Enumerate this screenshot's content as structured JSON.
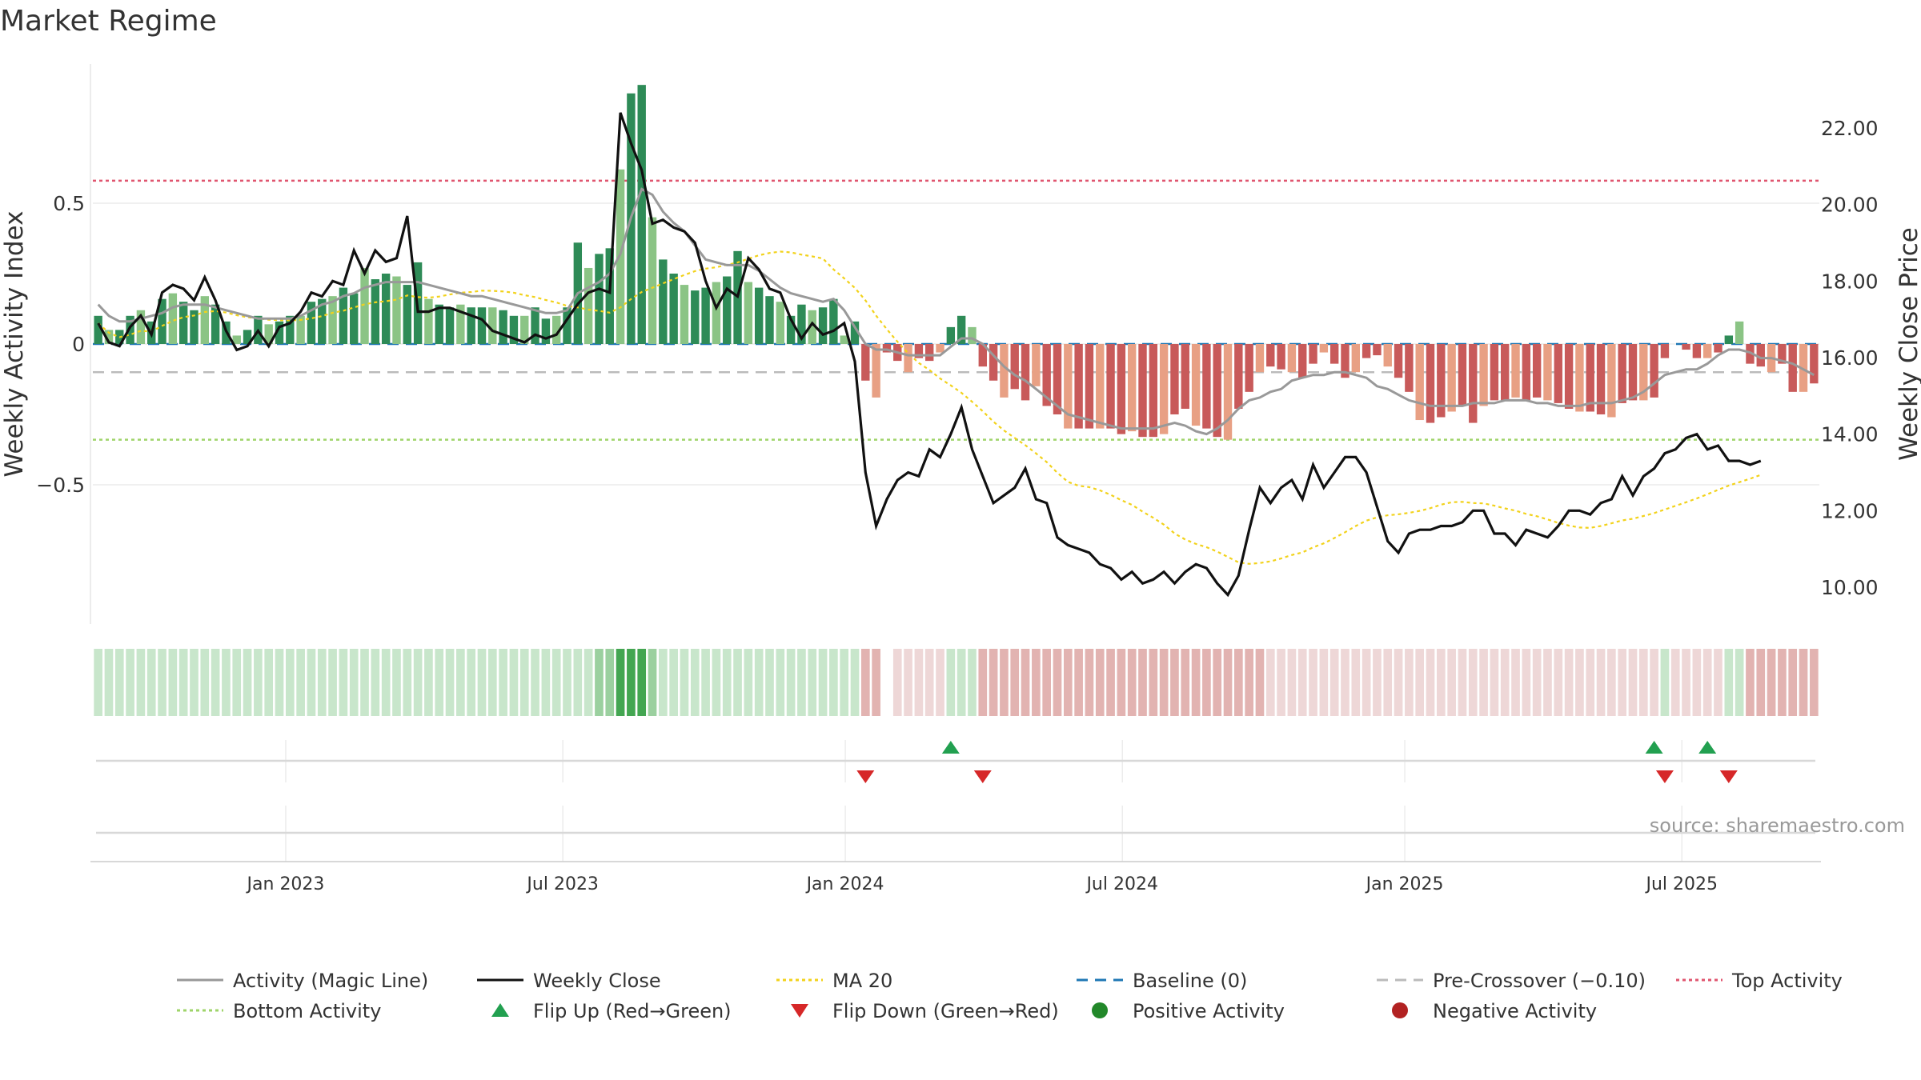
{
  "chart_data": {
    "type": "bar",
    "title": "Market Regime",
    "ylabel": "Weekly Activity Index",
    "y2label": "Weekly Close Price",
    "ylim": [
      -0.98,
      0.99
    ],
    "y2lim": [
      9.0,
      23.0
    ],
    "y_ticks": [
      {
        "v": 0.5,
        "label": "0.5"
      },
      {
        "v": 0,
        "label": "0"
      },
      {
        "v": -0.5,
        "label": "−0.5"
      }
    ],
    "y2_ticks": [
      {
        "v": 22,
        "label": "22.00"
      },
      {
        "v": 20,
        "label": "20.00"
      },
      {
        "v": 18,
        "label": "18.00"
      },
      {
        "v": 16,
        "label": "16.00"
      },
      {
        "v": 14,
        "label": "14.00"
      },
      {
        "v": 12,
        "label": "12.00"
      },
      {
        "v": 10,
        "label": "10.00"
      }
    ],
    "x_ticks": [
      {
        "i": 17.6,
        "label": "Jan 2023"
      },
      {
        "i": 43.6,
        "label": "Jul 2023"
      },
      {
        "i": 70.1,
        "label": "Jan 2024"
      },
      {
        "i": 96.1,
        "label": "Jul 2024"
      },
      {
        "i": 122.6,
        "label": "Jan 2025"
      },
      {
        "i": 148.6,
        "label": "Jul 2025"
      }
    ],
    "reference_lines": {
      "top_activity": 0.58,
      "bottom_activity": -0.34,
      "pre_crossover": -0.1,
      "baseline": 0
    },
    "activity": [
      0.1,
      0.05,
      0.05,
      0.1,
      0.12,
      0.08,
      0.16,
      0.18,
      0.15,
      0.12,
      0.17,
      0.14,
      0.08,
      0.03,
      0.05,
      0.1,
      0.07,
      0.08,
      0.1,
      0.1,
      0.15,
      0.16,
      0.17,
      0.2,
      0.18,
      0.27,
      0.23,
      0.25,
      0.24,
      0.21,
      0.29,
      0.16,
      0.14,
      0.13,
      0.14,
      0.13,
      0.13,
      0.13,
      0.12,
      0.1,
      0.1,
      0.13,
      0.09,
      0.1,
      0.13,
      0.36,
      0.27,
      0.32,
      0.34,
      0.62,
      0.89,
      0.92,
      0.45,
      0.3,
      0.25,
      0.21,
      0.19,
      0.2,
      0.22,
      0.24,
      0.33,
      0.22,
      0.2,
      0.17,
      0.15,
      0.1,
      0.14,
      0.12,
      0.13,
      0.16,
      0.03,
      0.08,
      -0.13,
      -0.19,
      -0.03,
      -0.06,
      -0.1,
      -0.05,
      -0.06,
      -0.03,
      0.06,
      0.1,
      0.06,
      -0.08,
      -0.13,
      -0.19,
      -0.16,
      -0.2,
      -0.15,
      -0.22,
      -0.25,
      -0.3,
      -0.3,
      -0.3,
      -0.3,
      -0.3,
      -0.32,
      -0.31,
      -0.33,
      -0.33,
      -0.32,
      -0.25,
      -0.23,
      -0.29,
      -0.3,
      -0.33,
      -0.34,
      -0.23,
      -0.17,
      -0.1,
      -0.08,
      -0.09,
      -0.1,
      -0.12,
      -0.07,
      -0.03,
      -0.07,
      -0.12,
      -0.1,
      -0.05,
      -0.04,
      -0.08,
      -0.12,
      -0.17,
      -0.27,
      -0.28,
      -0.26,
      -0.24,
      -0.22,
      -0.28,
      -0.22,
      -0.2,
      -0.2,
      -0.19,
      -0.2,
      -0.19,
      -0.2,
      -0.21,
      -0.23,
      -0.24,
      -0.24,
      -0.25,
      -0.26,
      -0.21,
      -0.2,
      -0.2,
      -0.19,
      -0.05,
      0.0,
      -0.02,
      -0.05,
      -0.05,
      -0.03,
      0.03,
      0.08,
      -0.07,
      -0.08,
      -0.1,
      -0.07,
      -0.17,
      -0.17,
      -0.14
    ],
    "magic_line": [
      0.14,
      0.1,
      0.08,
      0.08,
      0.09,
      0.1,
      0.11,
      0.13,
      0.14,
      0.14,
      0.14,
      0.13,
      0.12,
      0.11,
      0.1,
      0.09,
      0.09,
      0.09,
      0.09,
      0.1,
      0.12,
      0.14,
      0.15,
      0.17,
      0.18,
      0.2,
      0.21,
      0.22,
      0.22,
      0.22,
      0.22,
      0.21,
      0.2,
      0.19,
      0.18,
      0.17,
      0.17,
      0.16,
      0.15,
      0.14,
      0.13,
      0.12,
      0.11,
      0.11,
      0.12,
      0.18,
      0.2,
      0.22,
      0.25,
      0.32,
      0.45,
      0.55,
      0.53,
      0.47,
      0.43,
      0.4,
      0.35,
      0.3,
      0.29,
      0.28,
      0.28,
      0.28,
      0.26,
      0.23,
      0.2,
      0.18,
      0.17,
      0.16,
      0.15,
      0.16,
      0.12,
      0.06,
      0.0,
      -0.02,
      -0.02,
      -0.03,
      -0.04,
      -0.04,
      -0.04,
      -0.04,
      -0.01,
      0.02,
      0.02,
      0.0,
      -0.04,
      -0.08,
      -0.11,
      -0.13,
      -0.16,
      -0.19,
      -0.22,
      -0.25,
      -0.26,
      -0.27,
      -0.28,
      -0.29,
      -0.3,
      -0.3,
      -0.3,
      -0.3,
      -0.29,
      -0.28,
      -0.29,
      -0.31,
      -0.32,
      -0.3,
      -0.27,
      -0.23,
      -0.2,
      -0.19,
      -0.17,
      -0.16,
      -0.13,
      -0.12,
      -0.11,
      -0.11,
      -0.1,
      -0.1,
      -0.11,
      -0.12,
      -0.15,
      -0.16,
      -0.18,
      -0.2,
      -0.21,
      -0.22,
      -0.22,
      -0.22,
      -0.22,
      -0.21,
      -0.21,
      -0.21,
      -0.2,
      -0.2,
      -0.2,
      -0.21,
      -0.21,
      -0.22,
      -0.22,
      -0.22,
      -0.21,
      -0.21,
      -0.21,
      -0.2,
      -0.19,
      -0.17,
      -0.14,
      -0.11,
      -0.1,
      -0.09,
      -0.09,
      -0.07,
      -0.04,
      -0.02,
      -0.02,
      -0.03,
      -0.05,
      -0.05,
      -0.06,
      -0.07,
      -0.09,
      -0.11
    ],
    "weekly_close": [
      16.9,
      16.4,
      16.3,
      16.8,
      17.1,
      16.6,
      17.7,
      17.9,
      17.8,
      17.5,
      18.1,
      17.5,
      16.7,
      16.2,
      16.3,
      16.7,
      16.3,
      16.8,
      16.9,
      17.2,
      17.7,
      17.6,
      18.0,
      17.9,
      18.8,
      18.2,
      18.8,
      18.5,
      18.6,
      19.7,
      17.2,
      17.2,
      17.3,
      17.3,
      17.2,
      17.1,
      17.0,
      16.7,
      16.6,
      16.5,
      16.4,
      16.6,
      16.5,
      16.6,
      17.0,
      17.4,
      17.7,
      17.8,
      17.7,
      22.4,
      21.6,
      20.9,
      19.5,
      19.6,
      19.4,
      19.3,
      19.0,
      18.0,
      17.3,
      17.8,
      17.6,
      18.6,
      18.3,
      17.8,
      17.7,
      17.0,
      16.5,
      16.9,
      16.6,
      16.7,
      16.9,
      15.9,
      13.0,
      11.6,
      12.3,
      12.8,
      13.0,
      12.9,
      13.6,
      13.4,
      14.0,
      14.7,
      13.6,
      12.9,
      12.2,
      12.4,
      12.6,
      13.1,
      12.3,
      12.2,
      11.3,
      11.1,
      11.0,
      10.9,
      10.6,
      10.5,
      10.2,
      10.4,
      10.1,
      10.2,
      10.4,
      10.1,
      10.4,
      10.6,
      10.5,
      10.1,
      9.8,
      10.3,
      11.5,
      12.6,
      12.2,
      12.6,
      12.8,
      12.3,
      13.2,
      12.6,
      13.0,
      13.4,
      13.4,
      13.0,
      12.1,
      11.2,
      10.9,
      11.4,
      11.5,
      11.5,
      11.6,
      11.6,
      11.7,
      12.0,
      12.0,
      11.4,
      11.4,
      11.1,
      11.5,
      11.4,
      11.3,
      11.6,
      12.0,
      12.0,
      11.9,
      12.2,
      12.3,
      12.9,
      12.4,
      12.9,
      13.1,
      13.5,
      13.6,
      13.9,
      14.0,
      13.6,
      13.7,
      13.3,
      13.3,
      13.2,
      13.3
    ]
  },
  "regime_strip": {
    "levels": [
      1,
      1,
      1,
      1,
      1,
      1,
      1,
      1,
      1,
      1,
      1,
      1,
      1,
      1,
      1,
      1,
      1,
      1,
      1,
      1,
      1,
      1,
      1,
      1,
      1,
      1,
      1,
      1,
      1,
      1,
      1,
      1,
      1,
      1,
      1,
      1,
      1,
      1,
      1,
      1,
      1,
      1,
      1,
      1,
      1,
      1,
      1,
      2,
      2,
      3,
      3,
      3,
      2,
      1,
      1,
      1,
      1,
      1,
      1,
      1,
      1,
      1,
      1,
      1,
      1,
      1,
      1,
      1,
      1,
      1,
      1,
      1,
      -2,
      -2,
      0,
      -1,
      -1,
      -1,
      -1,
      -1,
      1,
      1,
      1,
      -2,
      -2,
      -2,
      -2,
      -2,
      -2,
      -2,
      -2,
      -2,
      -2,
      -2,
      -2,
      -2,
      -2,
      -2,
      -2,
      -2,
      -2,
      -2,
      -2,
      -2,
      -2,
      -2,
      -2,
      -2,
      -2,
      -2,
      -1,
      -1,
      -1,
      -1,
      -1,
      -1,
      -1,
      -1,
      -1,
      -1,
      -1,
      -1,
      -1,
      -1,
      -1,
      -1,
      -1,
      -1,
      -1,
      -1,
      -1,
      -1,
      -1,
      -1,
      -1,
      -1,
      -1,
      -1,
      -1,
      -1,
      -1,
      -1,
      -1,
      -1,
      -1,
      -1,
      -1,
      1,
      -1,
      -1,
      -1,
      -1,
      -1,
      1,
      1,
      -2,
      -2,
      -2,
      -2,
      -2,
      -2,
      -2
    ]
  },
  "signals": {
    "flip_up": [
      80,
      146,
      151
    ],
    "flip_down": [
      72,
      83,
      147,
      153
    ],
    "positive_activity": [],
    "negative_activity": []
  },
  "colors": {
    "bar_strong_pos": "#2e8b57",
    "bar_weak_pos": "#8bc485",
    "bar_strong_neg": "#c85a5a",
    "bar_weak_neg": "#e8a084",
    "strip_green_1": "#c8e6cb",
    "strip_green_2": "#9bd09f",
    "strip_green_3": "#43a651",
    "strip_red_1": "#eed7d7",
    "strip_red_2": "#e2b3b1",
    "magic_line": "#999999",
    "weekly_close": "#111111",
    "ma20": "#f2d21b",
    "baseline": "#1f77b4",
    "pre_crossover": "#bbbbbb",
    "top_activity": "#e0556f",
    "bottom_activity": "#9fd46a",
    "flip_up": "#22a050",
    "flip_down": "#d62728",
    "positive_activity": "#22882a",
    "negative_activity": "#b22222"
  },
  "source": "source: sharemaestro.com",
  "legend": [
    {
      "key": "magic_line",
      "label": "Activity (Magic Line)",
      "kind": "line",
      "dash": ""
    },
    {
      "key": "weekly_close",
      "label": "Weekly Close",
      "kind": "line",
      "dash": ""
    },
    {
      "key": "ma20",
      "label": "MA 20",
      "kind": "line",
      "dash": "4 4"
    },
    {
      "key": "baseline",
      "label": "Baseline (0)",
      "kind": "line",
      "dash": "14 9"
    },
    {
      "key": "pre_crossover",
      "label": "Pre-Crossover (−0.10)",
      "kind": "line",
      "dash": "14 9"
    },
    {
      "key": "top_activity",
      "label": "Top Activity",
      "kind": "line",
      "dash": "4 4"
    },
    {
      "key": "bottom_activity",
      "label": "Bottom Activity",
      "kind": "line",
      "dash": "4 4"
    },
    {
      "key": "flip_up",
      "label": "Flip Up (Red→Green)",
      "kind": "tri-up",
      "dash": ""
    },
    {
      "key": "flip_down",
      "label": "Flip Down (Green→Red)",
      "kind": "tri-down",
      "dash": ""
    },
    {
      "key": "positive_activity",
      "label": "Positive Activity",
      "kind": "dot",
      "dash": ""
    },
    {
      "key": "negative_activity",
      "label": "Negative Activity",
      "kind": "dot",
      "dash": ""
    }
  ]
}
